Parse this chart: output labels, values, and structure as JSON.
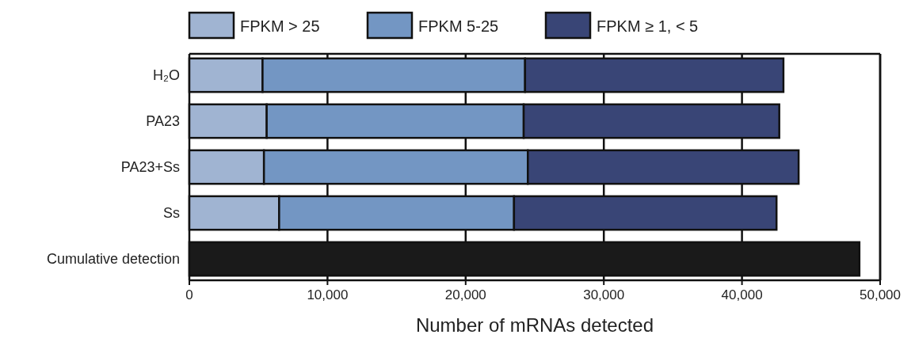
{
  "chart_data": {
    "type": "bar",
    "orientation": "horizontal",
    "stacked": true,
    "xlabel": "Number of mRNAs detected",
    "categories": [
      "H₂O",
      "PA23",
      "PA23+Ss",
      "Ss",
      "Cumulative detection"
    ],
    "series": [
      {
        "name": "FPKM > 25",
        "color": "#a0b4d2",
        "values": [
          5300,
          5600,
          5400,
          6500,
          null
        ]
      },
      {
        "name": "FPKM 5-25",
        "color": "#7396c3",
        "values": [
          19000,
          18600,
          19100,
          17000,
          null
        ]
      },
      {
        "name": "FPKM ≥ 1, < 5",
        "color": "#394576",
        "values": [
          18700,
          18500,
          19600,
          19000,
          null
        ]
      },
      {
        "color": "#1a1a1a",
        "values": [
          null,
          null,
          null,
          null,
          48500
        ]
      }
    ],
    "xlim": [
      0,
      50000
    ],
    "xticks": [
      0,
      {
        "value": 10000,
        "label": "10,000"
      },
      {
        "value": 20000,
        "label": "20,000"
      },
      {
        "value": 30000,
        "label": "30,000"
      },
      {
        "value": 40000,
        "label": "40,000"
      },
      {
        "value": 50000,
        "label": "50,000"
      }
    ],
    "grid": "x",
    "legend": "top"
  }
}
